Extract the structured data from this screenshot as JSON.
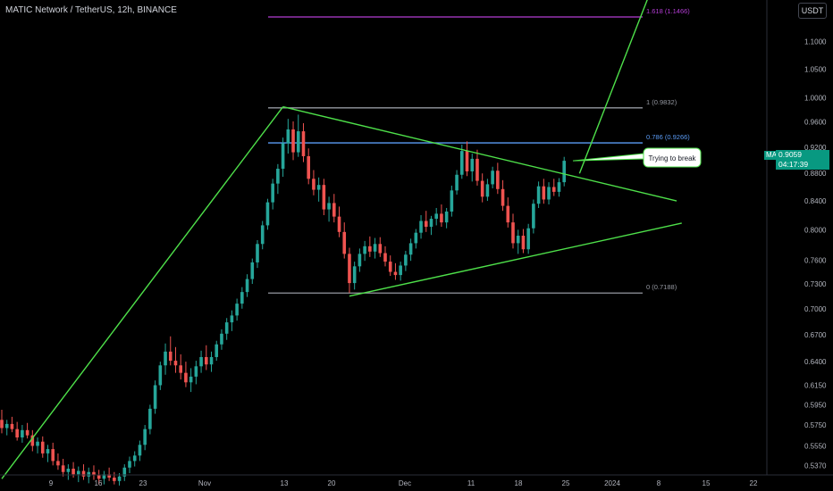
{
  "header": {
    "title": "MATIC Network / TetherUS, 12h, BINANCE",
    "currency": "USDT"
  },
  "price_tag": {
    "symbol": "MATICUSDT",
    "price": "0.9059",
    "countdown": "04:17:39"
  },
  "callout": {
    "text": "Trying to break"
  },
  "colors": {
    "background": "#000000",
    "up": "#26a69a",
    "down": "#ef5350",
    "trendline": "#4ee04a",
    "fib_0_786": "#5b9cf6",
    "fib_1_618": "#b33cd4",
    "fib_neutral": "#9598a1",
    "price_tag": "#089981"
  },
  "chart_data": {
    "type": "candlestick",
    "title": "MATIC Network / TetherUS, 12h, BINANCE",
    "y_axis": {
      "position": "right",
      "scale": "log",
      "range": [
        0.53,
        1.18
      ],
      "ticks": [
        "1.1000",
        "1.0500",
        "1.0000",
        "0.9600",
        "0.9200",
        "0.8800",
        "0.8400",
        "0.8000",
        "0.7600",
        "0.7300",
        "0.7000",
        "0.6700",
        "0.6400",
        "0.6150",
        "0.5950",
        "0.5750",
        "0.5550",
        "0.5370"
      ]
    },
    "x_axis": {
      "ticks": [
        "9",
        "16",
        "23",
        "Nov",
        "13",
        "20",
        "Dec",
        "11",
        "18",
        "25",
        "2024",
        "8",
        "15",
        "22"
      ]
    },
    "fib_levels": [
      {
        "label": "1.618 (1.1466)",
        "value": 1.1466
      },
      {
        "label": "1 (0.9832)",
        "value": 0.9832
      },
      {
        "label": "0.786 (0.9266)",
        "value": 0.9266
      },
      {
        "label": "0 (0.7188)",
        "value": 0.7188
      }
    ],
    "candles": [
      [
        0.58,
        0.59,
        0.567,
        0.572
      ],
      [
        0.572,
        0.58,
        0.565,
        0.576
      ],
      [
        0.576,
        0.583,
        0.568,
        0.571
      ],
      [
        0.571,
        0.578,
        0.56,
        0.563
      ],
      [
        0.563,
        0.575,
        0.558,
        0.57
      ],
      [
        0.57,
        0.577,
        0.562,
        0.565
      ],
      [
        0.565,
        0.57,
        0.55,
        0.555
      ],
      [
        0.555,
        0.563,
        0.548,
        0.559
      ],
      [
        0.559,
        0.564,
        0.544,
        0.548
      ],
      [
        0.548,
        0.556,
        0.54,
        0.552
      ],
      [
        0.552,
        0.558,
        0.537,
        0.541
      ],
      [
        0.541,
        0.548,
        0.533,
        0.537
      ],
      [
        0.537,
        0.543,
        0.527,
        0.531
      ],
      [
        0.531,
        0.538,
        0.524,
        0.534
      ],
      [
        0.534,
        0.54,
        0.526,
        0.529
      ],
      [
        0.529,
        0.536,
        0.522,
        0.532
      ],
      [
        0.532,
        0.538,
        0.524,
        0.527
      ],
      [
        0.527,
        0.535,
        0.521,
        0.531
      ],
      [
        0.531,
        0.537,
        0.524,
        0.528
      ],
      [
        0.528,
        0.533,
        0.52,
        0.525
      ],
      [
        0.525,
        0.532,
        0.52,
        0.529
      ],
      [
        0.529,
        0.535,
        0.523,
        0.526
      ],
      [
        0.526,
        0.531,
        0.52,
        0.523
      ],
      [
        0.523,
        0.53,
        0.519,
        0.527
      ],
      [
        0.527,
        0.538,
        0.523,
        0.535
      ],
      [
        0.535,
        0.545,
        0.53,
        0.541
      ],
      [
        0.541,
        0.55,
        0.536,
        0.546
      ],
      [
        0.546,
        0.56,
        0.541,
        0.556
      ],
      [
        0.556,
        0.575,
        0.551,
        0.571
      ],
      [
        0.571,
        0.595,
        0.566,
        0.591
      ],
      [
        0.591,
        0.62,
        0.586,
        0.615
      ],
      [
        0.615,
        0.64,
        0.61,
        0.636
      ],
      [
        0.636,
        0.66,
        0.626,
        0.651
      ],
      [
        0.651,
        0.668,
        0.636,
        0.641
      ],
      [
        0.641,
        0.656,
        0.628,
        0.636
      ],
      [
        0.636,
        0.648,
        0.621,
        0.628
      ],
      [
        0.628,
        0.64,
        0.613,
        0.618
      ],
      [
        0.618,
        0.633,
        0.608,
        0.624
      ],
      [
        0.624,
        0.641,
        0.616,
        0.635
      ],
      [
        0.635,
        0.652,
        0.628,
        0.645
      ],
      [
        0.645,
        0.658,
        0.631,
        0.637
      ],
      [
        0.637,
        0.651,
        0.629,
        0.645
      ],
      [
        0.645,
        0.663,
        0.641,
        0.659
      ],
      [
        0.659,
        0.676,
        0.653,
        0.671
      ],
      [
        0.671,
        0.689,
        0.664,
        0.684
      ],
      [
        0.684,
        0.698,
        0.674,
        0.692
      ],
      [
        0.692,
        0.712,
        0.686,
        0.706
      ],
      [
        0.706,
        0.726,
        0.7,
        0.72
      ],
      [
        0.72,
        0.742,
        0.714,
        0.736
      ],
      [
        0.736,
        0.762,
        0.73,
        0.757
      ],
      [
        0.757,
        0.786,
        0.75,
        0.781
      ],
      [
        0.781,
        0.812,
        0.774,
        0.806
      ],
      [
        0.806,
        0.843,
        0.8,
        0.838
      ],
      [
        0.838,
        0.872,
        0.828,
        0.865
      ],
      [
        0.865,
        0.894,
        0.85,
        0.887
      ],
      [
        0.887,
        0.935,
        0.875,
        0.926
      ],
      [
        0.926,
        0.965,
        0.91,
        0.948
      ],
      [
        0.948,
        0.961,
        0.9,
        0.912
      ],
      [
        0.912,
        0.972,
        0.905,
        0.945
      ],
      [
        0.945,
        0.958,
        0.897,
        0.906
      ],
      [
        0.906,
        0.918,
        0.864,
        0.872
      ],
      [
        0.872,
        0.885,
        0.848,
        0.856
      ],
      [
        0.856,
        0.874,
        0.839,
        0.863
      ],
      [
        0.863,
        0.872,
        0.82,
        0.828
      ],
      [
        0.828,
        0.846,
        0.811,
        0.837
      ],
      [
        0.837,
        0.85,
        0.81,
        0.818
      ],
      [
        0.818,
        0.832,
        0.79,
        0.797
      ],
      [
        0.797,
        0.81,
        0.762,
        0.768
      ],
      [
        0.768,
        0.776,
        0.719,
        0.731
      ],
      [
        0.731,
        0.758,
        0.723,
        0.752
      ],
      [
        0.752,
        0.775,
        0.745,
        0.768
      ],
      [
        0.768,
        0.785,
        0.759,
        0.778
      ],
      [
        0.778,
        0.791,
        0.764,
        0.771
      ],
      [
        0.771,
        0.789,
        0.762,
        0.781
      ],
      [
        0.781,
        0.79,
        0.764,
        0.769
      ],
      [
        0.769,
        0.778,
        0.752,
        0.758
      ],
      [
        0.758,
        0.766,
        0.74,
        0.745
      ],
      [
        0.745,
        0.756,
        0.735,
        0.741
      ],
      [
        0.741,
        0.758,
        0.734,
        0.753
      ],
      [
        0.753,
        0.772,
        0.746,
        0.767
      ],
      [
        0.767,
        0.788,
        0.759,
        0.782
      ],
      [
        0.782,
        0.801,
        0.775,
        0.796
      ],
      [
        0.796,
        0.82,
        0.788,
        0.812
      ],
      [
        0.812,
        0.826,
        0.797,
        0.804
      ],
      [
        0.804,
        0.819,
        0.793,
        0.815
      ],
      [
        0.815,
        0.83,
        0.806,
        0.822
      ],
      [
        0.822,
        0.835,
        0.804,
        0.81
      ],
      [
        0.81,
        0.83,
        0.802,
        0.825
      ],
      [
        0.825,
        0.862,
        0.818,
        0.855
      ],
      [
        0.855,
        0.885,
        0.849,
        0.878
      ],
      [
        0.878,
        0.924,
        0.872,
        0.914
      ],
      [
        0.914,
        0.929,
        0.876,
        0.883
      ],
      [
        0.883,
        0.91,
        0.868,
        0.902
      ],
      [
        0.902,
        0.916,
        0.862,
        0.869
      ],
      [
        0.869,
        0.88,
        0.838,
        0.846
      ],
      [
        0.846,
        0.872,
        0.84,
        0.864
      ],
      [
        0.864,
        0.89,
        0.858,
        0.884
      ],
      [
        0.884,
        0.896,
        0.85,
        0.857
      ],
      [
        0.857,
        0.87,
        0.826,
        0.833
      ],
      [
        0.833,
        0.845,
        0.803,
        0.81
      ],
      [
        0.81,
        0.822,
        0.775,
        0.782
      ],
      [
        0.782,
        0.8,
        0.768,
        0.792
      ],
      [
        0.792,
        0.801,
        0.769,
        0.774
      ],
      [
        0.774,
        0.808,
        0.768,
        0.802
      ],
      [
        0.802,
        0.842,
        0.795,
        0.836
      ],
      [
        0.836,
        0.868,
        0.83,
        0.861
      ],
      [
        0.861,
        0.872,
        0.836,
        0.842
      ],
      [
        0.842,
        0.867,
        0.835,
        0.86
      ],
      [
        0.86,
        0.872,
        0.847,
        0.853
      ],
      [
        0.853,
        0.873,
        0.846,
        0.867
      ],
      [
        0.867,
        0.905,
        0.861,
        0.899
      ]
    ],
    "trendlines": [
      {
        "from": [
          0,
          0.525
        ],
        "to": [
          55,
          0.985
        ]
      },
      {
        "from": [
          55,
          0.985
        ],
        "to": [
          132,
          0.84
        ]
      },
      {
        "from": [
          68,
          0.715
        ],
        "to": [
          133,
          0.809
        ]
      },
      {
        "from": [
          113,
          0.88
        ],
        "to": [
          127,
          1.2
        ]
      }
    ],
    "annotations": [
      "Trying to break"
    ]
  }
}
